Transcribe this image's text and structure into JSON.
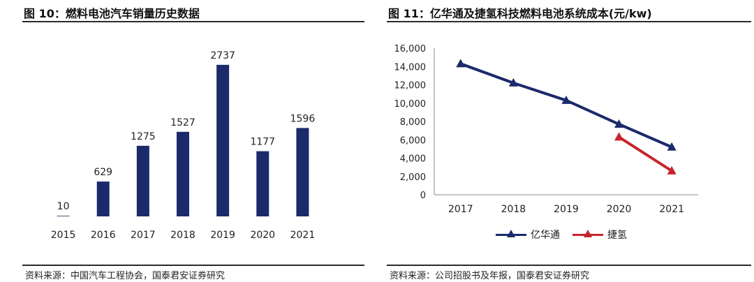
{
  "left_panel": {
    "title": "图 10：燃料电池汽车销量历史数据",
    "source": "资料来源：中国汽车工程协会，国泰君安证券研究"
  },
  "right_panel": {
    "title": "图 11：亿华通及捷氢科技燃料电池系统成本(元/kw)",
    "source": "资料来源：公司招股书及年报，国泰君安证券研究"
  },
  "chart_data": [
    {
      "type": "bar",
      "title": "图 10：燃料电池汽车销量历史数据",
      "categories": [
        "2015",
        "2016",
        "2017",
        "2018",
        "2019",
        "2020",
        "2021"
      ],
      "values": [
        10,
        629,
        1275,
        1527,
        2737,
        1177,
        1596
      ],
      "data_labels": [
        "10",
        "629",
        "1275",
        "1527",
        "2737",
        "1177",
        "1596"
      ],
      "ylim": [
        0,
        3000
      ],
      "grid": false,
      "color": "#1b2a6b"
    },
    {
      "type": "line",
      "title": "图 11：亿华通及捷氢科技燃料电池系统成本(元/kw)",
      "x": [
        "2017",
        "2018",
        "2019",
        "2020",
        "2021"
      ],
      "series": [
        {
          "name": "亿华通",
          "color": "#1b2a6b",
          "values": [
            14300,
            12200,
            10300,
            7700,
            5200
          ]
        },
        {
          "name": "捷氢",
          "color": "#c8242b",
          "values": [
            null,
            null,
            null,
            6300,
            2600
          ]
        }
      ],
      "ylim": [
        0,
        16000
      ],
      "yticks": [
        "0",
        "2,000",
        "4,000",
        "6,000",
        "8,000",
        "10,000",
        "12,000",
        "14,000",
        "16,000"
      ],
      "grid": false,
      "legend_position": "bottom"
    }
  ]
}
